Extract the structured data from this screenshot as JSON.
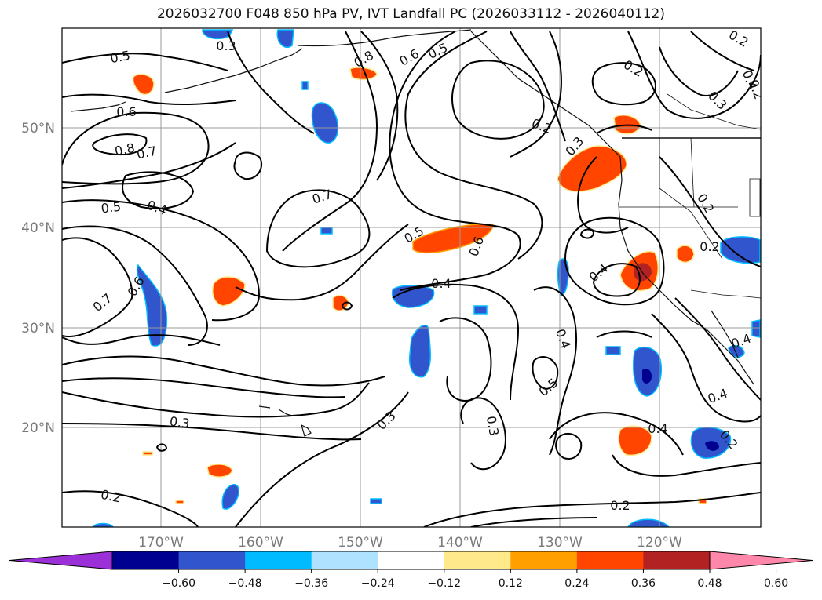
{
  "title": "2026032700 F048 850 hPa PV, IVT Landfall PC (2026033112 - 2026040112)",
  "lon_labels": [
    "170°W",
    "160°W",
    "150°W",
    "140°W",
    "130°W",
    "120°W"
  ],
  "lat_labels": [
    "50°N",
    "40°N",
    "30°N",
    "20°N"
  ],
  "colorbar": {
    "tick_labels": [
      "−0.60",
      "−0.48",
      "−0.36",
      "−0.24",
      "−0.12",
      "0.12",
      "0.24",
      "0.36",
      "0.48",
      "0.60"
    ],
    "colors": [
      "#9b30d9",
      "#000090",
      "#3055cc",
      "#00bbff",
      "#aee2ff",
      "#ffffff",
      "#ffe98a",
      "#ffa000",
      "#ff4500",
      "#b22222",
      "#ff88aa"
    ]
  },
  "contour_labels": [
    "0.5",
    "0.6",
    "0.8",
    "0.7",
    "0.5",
    "0.4",
    "0.7",
    "0.6",
    "0.7",
    "0.8",
    "0.6",
    "0.5",
    "0.5",
    "0.6",
    "0.4",
    "0.3",
    "0.2",
    "0.2",
    "0.3",
    "0.4",
    "0.4",
    "0.4",
    "0.5",
    "0.3",
    "0.3",
    "0.2",
    "0.4",
    "0.2",
    "0.4",
    "0.2",
    "0.2",
    "0.3",
    "0.4",
    "0.2",
    "0.2",
    "0.3",
    "0.2"
  ]
}
